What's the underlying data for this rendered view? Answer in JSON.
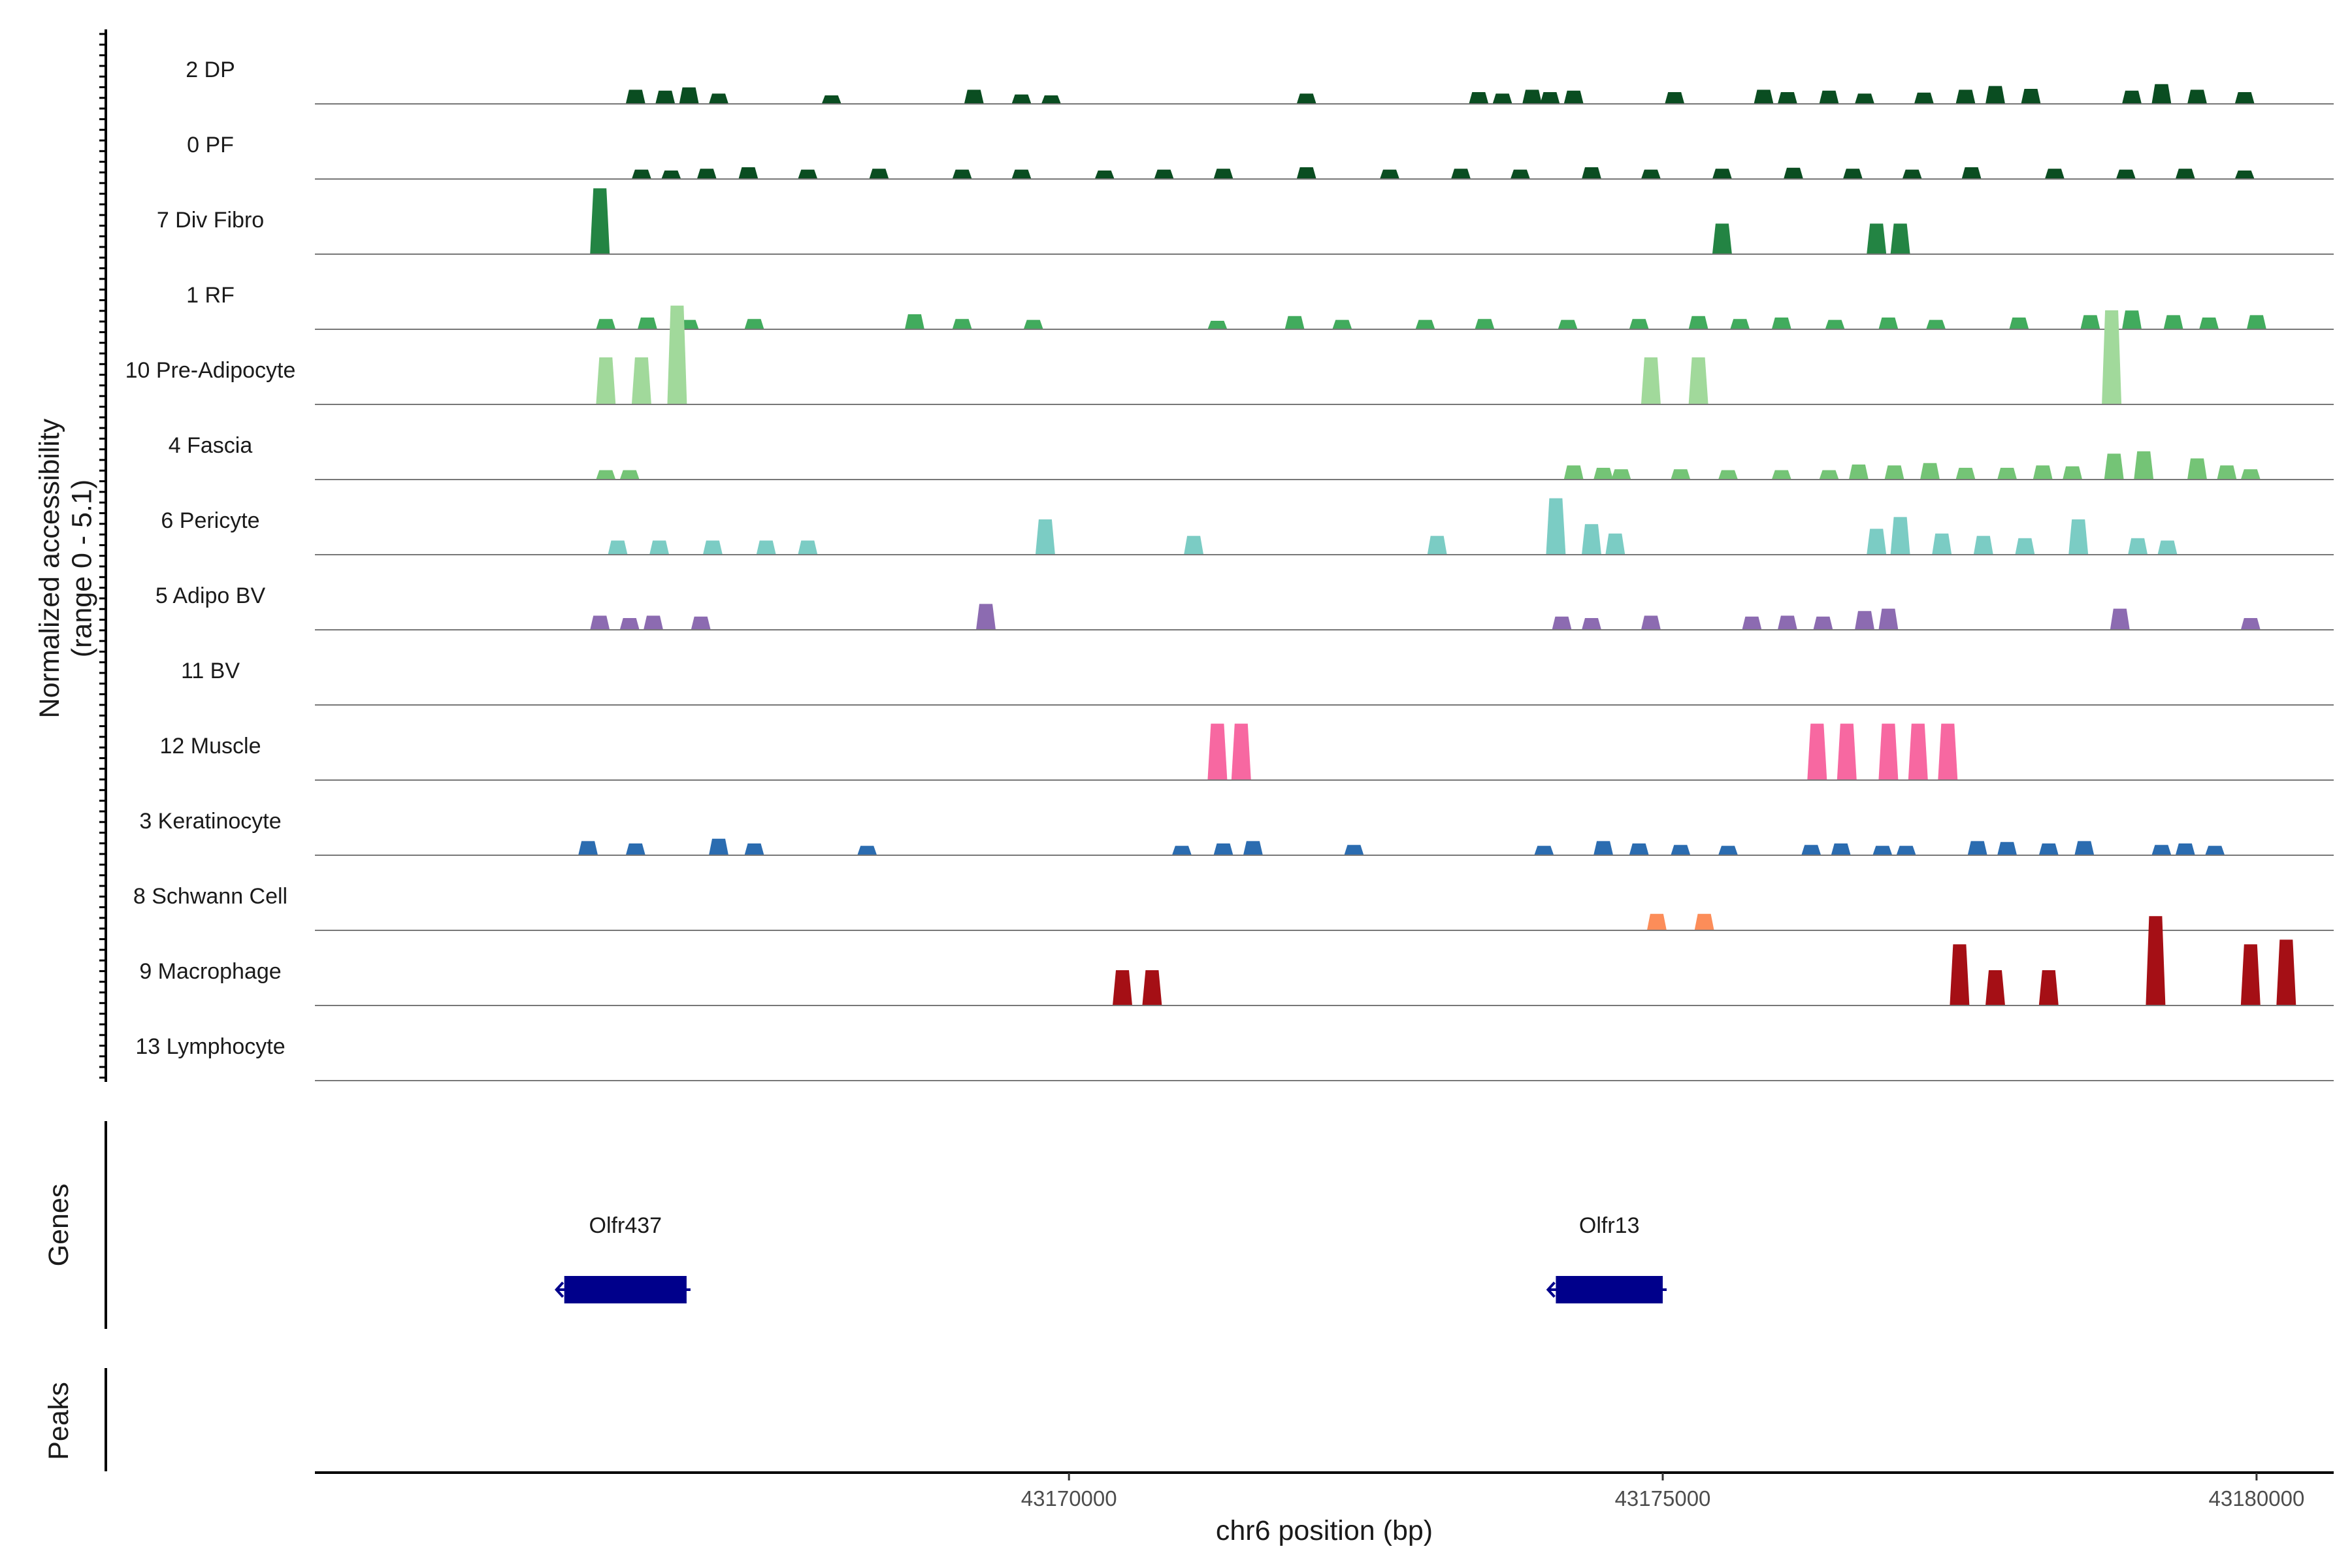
{
  "chart_data": {
    "type": "area",
    "ylabel": "Normalized accessibility\n(range 0 - 5.1)",
    "xlabel": "chr6 position (bp)",
    "xlim": [
      43163650,
      43180650
    ],
    "xticks": [
      43170000,
      43175000,
      43180000
    ],
    "xtick_labels": [
      "43170000",
      "43175000",
      "43180000"
    ],
    "tracks": [
      {
        "name": "2 DP",
        "color": "#0a4d21",
        "peaks": [
          [
            43166350,
            0.3
          ],
          [
            43166600,
            0.28
          ],
          [
            43166800,
            0.35
          ],
          [
            43167050,
            0.22
          ],
          [
            43168000,
            0.18
          ],
          [
            43169200,
            0.3
          ],
          [
            43169600,
            0.2
          ],
          [
            43169850,
            0.18
          ],
          [
            43172000,
            0.22
          ],
          [
            43173450,
            0.25
          ],
          [
            43173650,
            0.22
          ],
          [
            43173900,
            0.3
          ],
          [
            43174050,
            0.25
          ],
          [
            43174250,
            0.28
          ],
          [
            43175100,
            0.25
          ],
          [
            43175850,
            0.3
          ],
          [
            43176050,
            0.25
          ],
          [
            43176400,
            0.28
          ],
          [
            43176700,
            0.22
          ],
          [
            43177200,
            0.24
          ],
          [
            43177550,
            0.3
          ],
          [
            43177800,
            0.38
          ],
          [
            43178100,
            0.32
          ],
          [
            43178950,
            0.28
          ],
          [
            43179200,
            0.42
          ],
          [
            43179500,
            0.3
          ],
          [
            43179900,
            0.25
          ]
        ]
      },
      {
        "name": "0 PF",
        "color": "#0a4d21",
        "peaks": [
          [
            43166400,
            0.2
          ],
          [
            43166650,
            0.18
          ],
          [
            43166950,
            0.22
          ],
          [
            43167300,
            0.25
          ],
          [
            43167800,
            0.2
          ],
          [
            43168400,
            0.22
          ],
          [
            43169100,
            0.2
          ],
          [
            43169600,
            0.2
          ],
          [
            43170300,
            0.18
          ],
          [
            43170800,
            0.2
          ],
          [
            43171300,
            0.22
          ],
          [
            43172000,
            0.25
          ],
          [
            43172700,
            0.2
          ],
          [
            43173300,
            0.22
          ],
          [
            43173800,
            0.2
          ],
          [
            43174400,
            0.25
          ],
          [
            43174900,
            0.2
          ],
          [
            43175500,
            0.22
          ],
          [
            43176100,
            0.24
          ],
          [
            43176600,
            0.22
          ],
          [
            43177100,
            0.2
          ],
          [
            43177600,
            0.25
          ],
          [
            43178300,
            0.22
          ],
          [
            43178900,
            0.2
          ],
          [
            43179400,
            0.22
          ],
          [
            43179900,
            0.18
          ]
        ]
      },
      {
        "name": "7 Div Fibro",
        "color": "#238443",
        "peaks": [
          [
            43166050,
            1.4
          ],
          [
            43175500,
            0.65
          ],
          [
            43176800,
            0.65
          ],
          [
            43177000,
            0.65
          ]
        ]
      },
      {
        "name": "1 RF",
        "color": "#41ab5d",
        "peaks": [
          [
            43166100,
            0.22
          ],
          [
            43166450,
            0.25
          ],
          [
            43166800,
            0.2
          ],
          [
            43167350,
            0.22
          ],
          [
            43168700,
            0.32
          ],
          [
            43169100,
            0.22
          ],
          [
            43169700,
            0.2
          ],
          [
            43171250,
            0.18
          ],
          [
            43171900,
            0.28
          ],
          [
            43172300,
            0.2
          ],
          [
            43173000,
            0.2
          ],
          [
            43173500,
            0.22
          ],
          [
            43174200,
            0.2
          ],
          [
            43174800,
            0.22
          ],
          [
            43175300,
            0.28
          ],
          [
            43175650,
            0.22
          ],
          [
            43176000,
            0.25
          ],
          [
            43176450,
            0.2
          ],
          [
            43176900,
            0.25
          ],
          [
            43177300,
            0.2
          ],
          [
            43178000,
            0.25
          ],
          [
            43178600,
            0.3
          ],
          [
            43178950,
            0.4
          ],
          [
            43179300,
            0.3
          ],
          [
            43179600,
            0.25
          ],
          [
            43180000,
            0.3
          ]
        ]
      },
      {
        "name": "10 Pre-Adipocyte",
        "color": "#a1d99b",
        "peaks": [
          [
            43166100,
            1.0
          ],
          [
            43166400,
            1.0
          ],
          [
            43166700,
            2.1
          ],
          [
            43174900,
            1.0
          ],
          [
            43175300,
            1.0
          ],
          [
            43178780,
            2.0
          ]
        ]
      },
      {
        "name": "4 Fascia",
        "color": "#74c476",
        "peaks": [
          [
            43166100,
            0.2
          ],
          [
            43166300,
            0.2
          ],
          [
            43174250,
            0.3
          ],
          [
            43174500,
            0.25
          ],
          [
            43174650,
            0.22
          ],
          [
            43175150,
            0.22
          ],
          [
            43175550,
            0.2
          ],
          [
            43176000,
            0.2
          ],
          [
            43176400,
            0.2
          ],
          [
            43176650,
            0.32
          ],
          [
            43176950,
            0.3
          ],
          [
            43177250,
            0.35
          ],
          [
            43177550,
            0.25
          ],
          [
            43177900,
            0.25
          ],
          [
            43178200,
            0.3
          ],
          [
            43178450,
            0.28
          ],
          [
            43178800,
            0.55
          ],
          [
            43179050,
            0.6
          ],
          [
            43179500,
            0.45
          ],
          [
            43179750,
            0.3
          ],
          [
            43179950,
            0.22
          ]
        ]
      },
      {
        "name": "6 Pericyte",
        "color": "#7bccc4",
        "peaks": [
          [
            43166200,
            0.3
          ],
          [
            43166550,
            0.3
          ],
          [
            43167000,
            0.3
          ],
          [
            43167450,
            0.3
          ],
          [
            43167800,
            0.3
          ],
          [
            43169800,
            0.75
          ],
          [
            43171050,
            0.4
          ],
          [
            43173100,
            0.4
          ],
          [
            43174100,
            1.2
          ],
          [
            43174400,
            0.65
          ],
          [
            43174600,
            0.45
          ],
          [
            43176800,
            0.55
          ],
          [
            43177000,
            0.8
          ],
          [
            43177350,
            0.45
          ],
          [
            43177700,
            0.4
          ],
          [
            43178050,
            0.35
          ],
          [
            43178500,
            0.75
          ],
          [
            43179000,
            0.35
          ],
          [
            43179250,
            0.3
          ]
        ]
      },
      {
        "name": "5 Adipo BV",
        "color": "#8c6bb1",
        "peaks": [
          [
            43166050,
            0.3
          ],
          [
            43166300,
            0.25
          ],
          [
            43166500,
            0.3
          ],
          [
            43166900,
            0.28
          ],
          [
            43169300,
            0.55
          ],
          [
            43174150,
            0.28
          ],
          [
            43174400,
            0.25
          ],
          [
            43174900,
            0.3
          ],
          [
            43175750,
            0.28
          ],
          [
            43176050,
            0.3
          ],
          [
            43176350,
            0.28
          ],
          [
            43176700,
            0.4
          ],
          [
            43176900,
            0.45
          ],
          [
            43178850,
            0.45
          ],
          [
            43179950,
            0.25
          ]
        ]
      },
      {
        "name": "11 BV",
        "color": "#6a51a3",
        "peaks": []
      },
      {
        "name": "12 Muscle",
        "color": "#f768a1",
        "peaks": [
          [
            43171250,
            1.2
          ],
          [
            43171450,
            1.2
          ],
          [
            43176300,
            1.2
          ],
          [
            43176550,
            1.2
          ],
          [
            43176900,
            1.2
          ],
          [
            43177150,
            1.2
          ],
          [
            43177400,
            1.2
          ]
        ]
      },
      {
        "name": "3 Keratinocyte",
        "color": "#2b6cb0",
        "peaks": [
          [
            43165950,
            0.3
          ],
          [
            43166350,
            0.25
          ],
          [
            43167050,
            0.35
          ],
          [
            43167350,
            0.25
          ],
          [
            43168300,
            0.2
          ],
          [
            43170950,
            0.2
          ],
          [
            43171300,
            0.25
          ],
          [
            43171550,
            0.3
          ],
          [
            43172400,
            0.22
          ],
          [
            43174000,
            0.2
          ],
          [
            43174500,
            0.3
          ],
          [
            43174800,
            0.25
          ],
          [
            43175150,
            0.22
          ],
          [
            43175550,
            0.2
          ],
          [
            43176250,
            0.22
          ],
          [
            43176500,
            0.25
          ],
          [
            43176850,
            0.2
          ],
          [
            43177050,
            0.2
          ],
          [
            43177650,
            0.3
          ],
          [
            43177900,
            0.28
          ],
          [
            43178250,
            0.25
          ],
          [
            43178550,
            0.3
          ],
          [
            43179200,
            0.22
          ],
          [
            43179400,
            0.25
          ],
          [
            43179650,
            0.2
          ]
        ]
      },
      {
        "name": "8 Schwann Cell",
        "color": "#fc8d59",
        "peaks": [
          [
            43174950,
            0.35
          ],
          [
            43175350,
            0.35
          ]
        ]
      },
      {
        "name": "9 Macrophage",
        "color": "#a50f15",
        "peaks": [
          [
            43170450,
            0.75
          ],
          [
            43170700,
            0.75
          ],
          [
            43177500,
            1.3
          ],
          [
            43177800,
            0.75
          ],
          [
            43178250,
            0.75
          ],
          [
            43179150,
            1.9
          ],
          [
            43179950,
            1.3
          ],
          [
            43180250,
            1.4
          ]
        ]
      },
      {
        "name": "13 Lymphocyte",
        "color": "#333333",
        "peaks": []
      }
    ],
    "genes_label": "Genes",
    "peaks_label": "Peaks",
    "genes": [
      {
        "name": "Olfr437",
        "start": 43165750,
        "end": 43166780,
        "strand": "-",
        "color": "#00008b"
      },
      {
        "name": "Olfr13",
        "start": 43174100,
        "end": 43175000,
        "strand": "-",
        "color": "#00008b"
      }
    ]
  }
}
